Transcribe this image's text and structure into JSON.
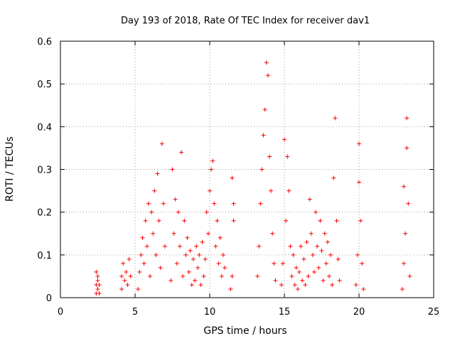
{
  "chart_data": {
    "type": "scatter",
    "title": "Day 193 of 2018, Rate Of TEC Index for receiver dav1",
    "xlabel": "GPS time / hours",
    "ylabel": "ROTI / TECUs",
    "xlim": [
      0,
      25
    ],
    "ylim": [
      0,
      0.6
    ],
    "xticks": [
      "0",
      "5",
      "10",
      "15",
      "20",
      "25"
    ],
    "yticks": [
      "0",
      "0.1",
      "0.2",
      "0.3",
      "0.4",
      "0.5",
      "0.6"
    ],
    "grid": true,
    "marker": "+",
    "color": "#ff0000",
    "series": [
      {
        "values": [
          [
            2.4,
            0.01
          ],
          [
            2.4,
            0.03
          ],
          [
            2.4,
            0.06
          ],
          [
            2.5,
            0.02
          ],
          [
            2.5,
            0.04
          ],
          [
            2.5,
            0.05
          ],
          [
            2.6,
            0.01
          ],
          [
            2.6,
            0.03
          ],
          [
            4.1,
            0.02
          ],
          [
            4.1,
            0.05
          ],
          [
            4.2,
            0.08
          ],
          [
            4.3,
            0.04
          ],
          [
            4.4,
            0.06
          ],
          [
            4.5,
            0.03
          ],
          [
            4.6,
            0.09
          ],
          [
            4.7,
            0.05
          ],
          [
            5.2,
            0.02
          ],
          [
            5.3,
            0.06
          ],
          [
            5.4,
            0.1
          ],
          [
            5.5,
            0.14
          ],
          [
            5.6,
            0.08
          ],
          [
            5.7,
            0.18
          ],
          [
            5.8,
            0.12
          ],
          [
            5.9,
            0.22
          ],
          [
            6.0,
            0.05
          ],
          [
            6.1,
            0.2
          ],
          [
            6.2,
            0.15
          ],
          [
            6.3,
            0.25
          ],
          [
            6.4,
            0.1
          ],
          [
            6.5,
            0.29
          ],
          [
            6.6,
            0.18
          ],
          [
            6.7,
            0.07
          ],
          [
            6.8,
            0.36
          ],
          [
            6.9,
            0.22
          ],
          [
            7.0,
            0.12
          ],
          [
            7.4,
            0.04
          ],
          [
            7.5,
            0.3
          ],
          [
            7.6,
            0.15
          ],
          [
            7.7,
            0.23
          ],
          [
            7.8,
            0.08
          ],
          [
            7.9,
            0.2
          ],
          [
            8.0,
            0.12
          ],
          [
            8.1,
            0.34
          ],
          [
            8.2,
            0.05
          ],
          [
            8.3,
            0.18
          ],
          [
            8.4,
            0.1
          ],
          [
            8.5,
            0.14
          ],
          [
            8.6,
            0.06
          ],
          [
            8.7,
            0.11
          ],
          [
            8.8,
            0.03
          ],
          [
            8.9,
            0.09
          ],
          [
            9.0,
            0.04
          ],
          [
            9.1,
            0.12
          ],
          [
            9.2,
            0.07
          ],
          [
            9.3,
            0.1
          ],
          [
            9.4,
            0.03
          ],
          [
            9.5,
            0.13
          ],
          [
            9.6,
            0.05
          ],
          [
            9.7,
            0.09
          ],
          [
            9.8,
            0.2
          ],
          [
            9.9,
            0.15
          ],
          [
            10.0,
            0.25
          ],
          [
            10.1,
            0.3
          ],
          [
            10.2,
            0.32
          ],
          [
            10.3,
            0.22
          ],
          [
            10.4,
            0.12
          ],
          [
            10.5,
            0.18
          ],
          [
            10.6,
            0.08
          ],
          [
            10.7,
            0.14
          ],
          [
            10.8,
            0.05
          ],
          [
            10.9,
            0.1
          ],
          [
            11.0,
            0.07
          ],
          [
            11.4,
            0.02
          ],
          [
            11.5,
            0.05
          ],
          [
            11.5,
            0.28
          ],
          [
            11.6,
            0.22
          ],
          [
            11.6,
            0.18
          ],
          [
            13.2,
            0.05
          ],
          [
            13.3,
            0.12
          ],
          [
            13.4,
            0.22
          ],
          [
            13.5,
            0.3
          ],
          [
            13.6,
            0.38
          ],
          [
            13.7,
            0.44
          ],
          [
            13.8,
            0.55
          ],
          [
            13.9,
            0.52
          ],
          [
            14.0,
            0.33
          ],
          [
            14.1,
            0.25
          ],
          [
            14.2,
            0.15
          ],
          [
            14.3,
            0.08
          ],
          [
            14.4,
            0.04
          ],
          [
            14.8,
            0.03
          ],
          [
            14.9,
            0.08
          ],
          [
            15.0,
            0.37
          ],
          [
            15.1,
            0.18
          ],
          [
            15.2,
            0.33
          ],
          [
            15.3,
            0.25
          ],
          [
            15.4,
            0.12
          ],
          [
            15.5,
            0.05
          ],
          [
            15.6,
            0.1
          ],
          [
            15.7,
            0.03
          ],
          [
            15.8,
            0.07
          ],
          [
            15.9,
            0.02
          ],
          [
            16.0,
            0.06
          ],
          [
            16.1,
            0.12
          ],
          [
            16.2,
            0.04
          ],
          [
            16.3,
            0.09
          ],
          [
            16.4,
            0.03
          ],
          [
            16.5,
            0.13
          ],
          [
            16.6,
            0.05
          ],
          [
            16.7,
            0.23
          ],
          [
            16.8,
            0.15
          ],
          [
            16.9,
            0.1
          ],
          [
            17.0,
            0.06
          ],
          [
            17.1,
            0.2
          ],
          [
            17.2,
            0.12
          ],
          [
            17.3,
            0.07
          ],
          [
            17.4,
            0.18
          ],
          [
            17.5,
            0.11
          ],
          [
            17.6,
            0.04
          ],
          [
            17.7,
            0.15
          ],
          [
            17.8,
            0.08
          ],
          [
            17.9,
            0.13
          ],
          [
            18.0,
            0.05
          ],
          [
            18.1,
            0.1
          ],
          [
            18.2,
            0.03
          ],
          [
            18.3,
            0.28
          ],
          [
            18.4,
            0.42
          ],
          [
            18.5,
            0.18
          ],
          [
            18.6,
            0.09
          ],
          [
            18.7,
            0.04
          ],
          [
            19.8,
            0.03
          ],
          [
            19.9,
            0.1
          ],
          [
            20.0,
            0.36
          ],
          [
            20.0,
            0.27
          ],
          [
            20.1,
            0.18
          ],
          [
            20.2,
            0.08
          ],
          [
            20.3,
            0.02
          ],
          [
            22.9,
            0.02
          ],
          [
            23.0,
            0.08
          ],
          [
            23.0,
            0.26
          ],
          [
            23.1,
            0.15
          ],
          [
            23.2,
            0.42
          ],
          [
            23.2,
            0.35
          ],
          [
            23.3,
            0.22
          ],
          [
            23.4,
            0.05
          ]
        ]
      }
    ]
  }
}
